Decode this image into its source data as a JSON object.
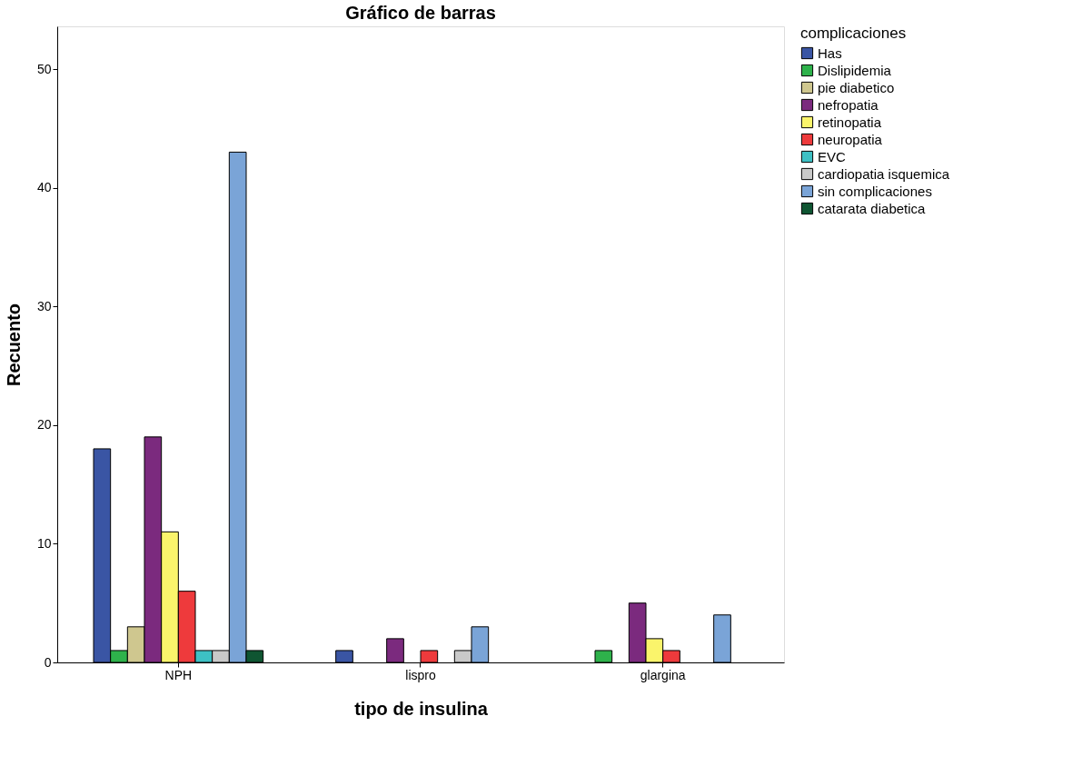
{
  "chart_data": {
    "type": "bar",
    "title": "Gráfico de barras",
    "xlabel": "tipo de insulina",
    "ylabel": "Recuento",
    "legend_title": "complicaciones",
    "legend": "right",
    "grid": false,
    "categories": [
      "NPH",
      "lispro",
      "glargina"
    ],
    "ylim": [
      0,
      53.6
    ],
    "yticks": [
      0,
      10,
      20,
      30,
      40,
      50
    ],
    "series": [
      {
        "name": "Has",
        "color": "#3a55a4",
        "values": [
          18,
          1,
          null
        ]
      },
      {
        "name": "Dislipidemia",
        "color": "#2eb24b",
        "values": [
          1,
          null,
          1
        ]
      },
      {
        "name": "pie diabetico",
        "color": "#cfc78f",
        "values": [
          3,
          null,
          null
        ]
      },
      {
        "name": "nefropatia",
        "color": "#7b2a7e",
        "values": [
          19,
          2,
          5
        ]
      },
      {
        "name": "retinopatia",
        "color": "#faf46b",
        "values": [
          11,
          null,
          2
        ]
      },
      {
        "name": "neuropatia",
        "color": "#ee3a3c",
        "values": [
          6,
          1,
          1
        ]
      },
      {
        "name": "EVC",
        "color": "#3dc0c4",
        "values": [
          1,
          null,
          null
        ]
      },
      {
        "name": "cardiopatia isquemica",
        "color": "#c9c9c9",
        "values": [
          1,
          1,
          null
        ]
      },
      {
        "name": "sin complicaciones",
        "color": "#7aa4d7",
        "values": [
          43,
          3,
          4
        ]
      },
      {
        "name": "catarata diabetica",
        "color": "#0f5532",
        "values": [
          1,
          null,
          null
        ]
      }
    ]
  }
}
